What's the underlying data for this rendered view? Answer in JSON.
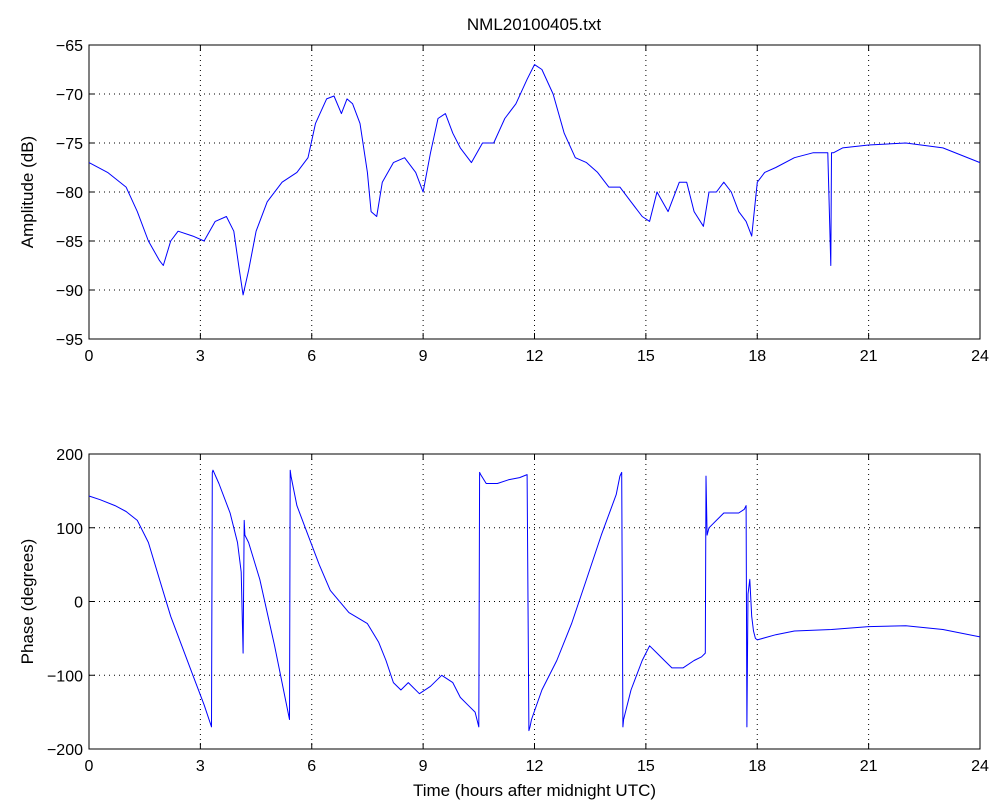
{
  "figure": {
    "title": "NML20100405.txt"
  },
  "chart_data": [
    {
      "type": "line",
      "title": "NML20100405.txt",
      "xlabel": "",
      "ylabel": "Amplitude (dB)",
      "xlim": [
        0,
        24
      ],
      "ylim": [
        -95,
        -65
      ],
      "xticks": [
        0,
        3,
        6,
        9,
        12,
        15,
        18,
        21,
        24
      ],
      "yticks": [
        -95,
        -90,
        -85,
        -80,
        -75,
        -70,
        -65
      ],
      "grid": true,
      "color": "#0000ff",
      "x": [
        0,
        0.5,
        1.0,
        1.3,
        1.6,
        1.9,
        2.0,
        2.2,
        2.4,
        2.8,
        3.1,
        3.4,
        3.7,
        3.9,
        4.05,
        4.15,
        4.3,
        4.5,
        4.8,
        5.2,
        5.6,
        5.9,
        6.1,
        6.4,
        6.6,
        6.8,
        6.95,
        7.1,
        7.3,
        7.5,
        7.6,
        7.75,
        7.9,
        8.2,
        8.5,
        8.8,
        9.0,
        9.2,
        9.4,
        9.6,
        9.8,
        10.0,
        10.3,
        10.6,
        10.9,
        11.2,
        11.5,
        11.8,
        12.0,
        12.2,
        12.5,
        12.8,
        13.1,
        13.4,
        13.7,
        14.0,
        14.3,
        14.6,
        14.9,
        15.1,
        15.3,
        15.6,
        15.9,
        16.1,
        16.3,
        16.55,
        16.7,
        16.9,
        17.1,
        17.3,
        17.5,
        17.7,
        17.85,
        18.0,
        18.2,
        18.5,
        19.0,
        19.5,
        19.9,
        19.98,
        20.0,
        20.05,
        20.3,
        21.0,
        22.0,
        23.0,
        24.0
      ],
      "y": [
        -77,
        -78,
        -79.5,
        -82,
        -85,
        -87,
        -87.5,
        -85,
        -84,
        -84.5,
        -85,
        -83,
        -82.5,
        -84,
        -88,
        -90.5,
        -88,
        -84,
        -81,
        -79,
        -78,
        -76.5,
        -73,
        -70.5,
        -70.2,
        -72,
        -70.5,
        -71,
        -73,
        -78,
        -82,
        -82.5,
        -79,
        -77,
        -76.5,
        -78,
        -80,
        -76,
        -72.5,
        -72,
        -74,
        -75.5,
        -77,
        -75,
        -75,
        -72.5,
        -71,
        -68.5,
        -67,
        -67.5,
        -70,
        -74,
        -76.5,
        -77,
        -78,
        -79.5,
        -79.5,
        -81,
        -82.5,
        -83,
        -80,
        -82,
        -79,
        -79,
        -82,
        -83.5,
        -80,
        -80,
        -79,
        -80,
        -82,
        -83,
        -84.5,
        -79,
        -78,
        -77.5,
        -76.5,
        -76,
        -76,
        -87.5,
        -76,
        -76,
        -75.5,
        -75.2,
        -75,
        -75.5,
        -77
      ]
    },
    {
      "type": "line",
      "title": "",
      "xlabel": "Time (hours after midnight UTC)",
      "ylabel": "Phase (degrees)",
      "xlim": [
        0,
        24
      ],
      "ylim": [
        -200,
        200
      ],
      "xticks": [
        0,
        3,
        6,
        9,
        12,
        15,
        18,
        21,
        24
      ],
      "yticks": [
        -200,
        -100,
        0,
        100,
        200
      ],
      "grid": true,
      "color": "#0000ff",
      "x": [
        0,
        0.3,
        0.7,
        1.0,
        1.3,
        1.6,
        1.9,
        2.2,
        2.5,
        2.8,
        3.1,
        3.3,
        3.32,
        3.34,
        3.5,
        3.8,
        4.0,
        4.1,
        4.15,
        4.18,
        4.2,
        4.3,
        4.6,
        5.0,
        5.4,
        5.42,
        5.44,
        5.6,
        5.9,
        6.2,
        6.5,
        7.0,
        7.5,
        7.8,
        8.0,
        8.2,
        8.4,
        8.6,
        8.9,
        9.2,
        9.5,
        9.8,
        10.0,
        10.2,
        10.4,
        10.5,
        10.52,
        10.55,
        10.7,
        11.0,
        11.3,
        11.6,
        11.8,
        11.85,
        11.88,
        11.92,
        12.2,
        12.6,
        13.0,
        13.4,
        13.8,
        14.2,
        14.3,
        14.35,
        14.38,
        14.4,
        14.6,
        14.9,
        15.1,
        15.3,
        15.5,
        15.7,
        16.0,
        16.3,
        16.5,
        16.6,
        16.62,
        16.65,
        16.7,
        16.9,
        17.1,
        17.3,
        17.5,
        17.65,
        17.7,
        17.72,
        17.75,
        17.8,
        17.85,
        17.9,
        17.95,
        18.0,
        18.5,
        19.0,
        20.0,
        21.0,
        22.0,
        23.0,
        24.0
      ],
      "y": [
        143,
        138,
        130,
        122,
        110,
        80,
        30,
        -20,
        -60,
        -100,
        -140,
        -170,
        175,
        178,
        160,
        120,
        80,
        40,
        -70,
        110,
        90,
        80,
        30,
        -60,
        -160,
        178,
        170,
        130,
        90,
        50,
        15,
        -15,
        -30,
        -55,
        -80,
        -110,
        -120,
        -110,
        -125,
        -115,
        -100,
        -110,
        -130,
        -140,
        -150,
        -170,
        175,
        172,
        160,
        160,
        165,
        168,
        172,
        -175,
        -170,
        -160,
        -120,
        -80,
        -30,
        30,
        90,
        145,
        170,
        175,
        -170,
        -160,
        -120,
        -80,
        -60,
        -70,
        -80,
        -90,
        -90,
        -80,
        -75,
        -70,
        170,
        90,
        100,
        110,
        120,
        120,
        120,
        125,
        130,
        -170,
        10,
        30,
        -20,
        -40,
        -50,
        -52,
        -45,
        -40,
        -38,
        -34,
        -33,
        -38,
        -48
      ]
    }
  ]
}
